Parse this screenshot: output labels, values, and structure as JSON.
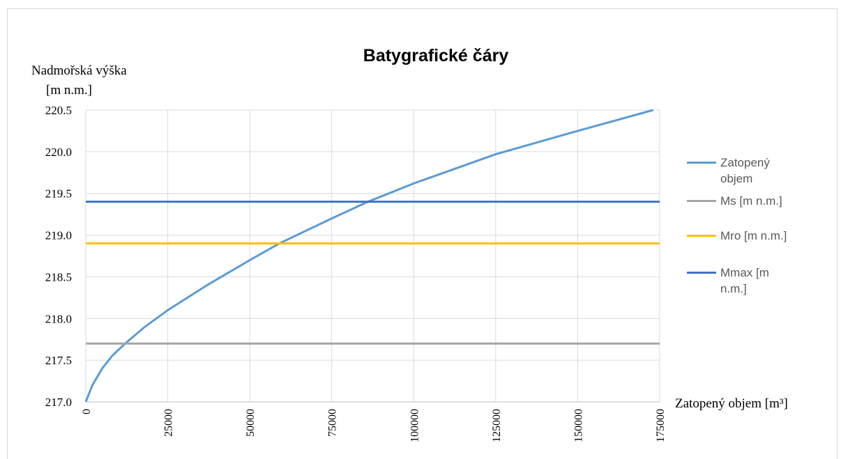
{
  "chart_data": {
    "type": "line",
    "title": "Batygrafické čáry",
    "y_label": [
      "Nadmořská výška",
      "[m n.m.]"
    ],
    "x_label": "Zatopený objem [m³]",
    "xlim": [
      0,
      175000
    ],
    "xticks": [
      0,
      25000,
      50000,
      75000,
      100000,
      125000,
      150000,
      175000
    ],
    "ylim": [
      217,
      220.5
    ],
    "yticks": [
      {
        "value": 217,
        "label": "217.0"
      },
      217.5,
      {
        "value": 218,
        "label": "218.0"
      },
      218.5,
      {
        "value": 219,
        "label": "219.0"
      },
      219.5,
      {
        "value": 220,
        "label": "220.0"
      },
      220.5
    ],
    "grid": true,
    "legend": "right",
    "series": [
      {
        "name": "Zatopený objem",
        "color": "#5b9bd5",
        "x": [
          0,
          2000,
          5000,
          8000,
          12000,
          18000,
          25000,
          37000,
          50000,
          59000,
          75000,
          86000,
          100000,
          125000,
          150000,
          173000
        ],
        "values": [
          217.0,
          217.2,
          217.4,
          217.55,
          217.7,
          217.9,
          218.1,
          218.4,
          218.7,
          218.9,
          219.2,
          219.4,
          219.62,
          219.97,
          220.25,
          220.5
        ]
      },
      {
        "name": "Ms [m n.m.]",
        "color": "#a5a5a5",
        "x": [
          0,
          175000
        ],
        "values": [
          217.7,
          217.7
        ]
      },
      {
        "name": "Mro [m n.m.]",
        "color": "#ffc000",
        "x": [
          0,
          175000
        ],
        "values": [
          218.9,
          218.9
        ]
      },
      {
        "name": "Mmax [m n.m.]",
        "color": "#4472c4",
        "x": [
          0,
          175000
        ],
        "values": [
          219.4,
          219.4
        ]
      }
    ]
  }
}
